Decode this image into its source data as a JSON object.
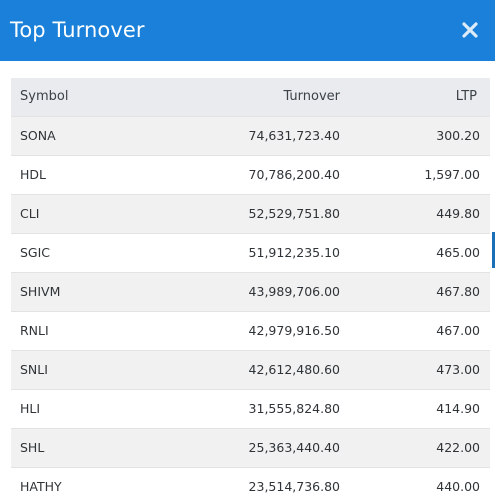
{
  "modal": {
    "title": "Top Turnover",
    "close_icon": "close-icon",
    "accent_color": "#1a80d9"
  },
  "table": {
    "headers": {
      "symbol": "Symbol",
      "turnover": "Turnover",
      "ltp": "LTP"
    },
    "rows": [
      {
        "symbol": "SONA",
        "turnover": "74,631,723.40",
        "ltp": "300.20"
      },
      {
        "symbol": "HDL",
        "turnover": "70,786,200.40",
        "ltp": "1,597.00"
      },
      {
        "symbol": "CLI",
        "turnover": "52,529,751.80",
        "ltp": "449.80"
      },
      {
        "symbol": "SGIC",
        "turnover": "51,912,235.10",
        "ltp": "465.00"
      },
      {
        "symbol": "SHIVM",
        "turnover": "43,989,706.00",
        "ltp": "467.80"
      },
      {
        "symbol": "RNLI",
        "turnover": "42,979,916.50",
        "ltp": "467.00"
      },
      {
        "symbol": "SNLI",
        "turnover": "42,612,480.60",
        "ltp": "473.00"
      },
      {
        "symbol": "HLI",
        "turnover": "31,555,824.80",
        "ltp": "414.90"
      },
      {
        "symbol": "SHL",
        "turnover": "25,363,440.40",
        "ltp": "422.00"
      },
      {
        "symbol": "HATHY",
        "turnover": "23,514,736.80",
        "ltp": "440.00"
      }
    ]
  }
}
